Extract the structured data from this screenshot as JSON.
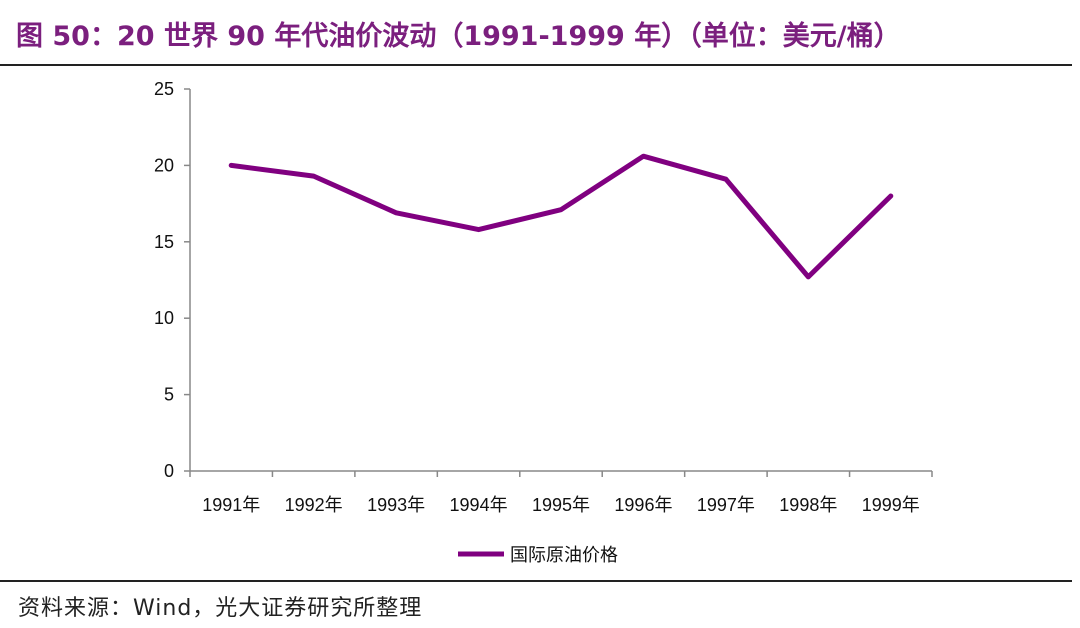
{
  "title": "图 50：20 世界 90 年代油价波动（1991-1999 年）（单位：美元/桶）",
  "source": "资料来源：Wind，光大证券研究所整理",
  "colors": {
    "line": "#800080",
    "title": "#7b1f7e",
    "axis": "#888888"
  },
  "chart_data": {
    "type": "line",
    "categories": [
      "1991年",
      "1992年",
      "1993年",
      "1994年",
      "1995年",
      "1996年",
      "1997年",
      "1998年",
      "1999年"
    ],
    "series": [
      {
        "name": "国际原油价格",
        "values": [
          20.0,
          19.3,
          16.9,
          15.8,
          17.1,
          20.6,
          19.1,
          12.7,
          18.0
        ]
      }
    ],
    "ylim": [
      0,
      25
    ],
    "yticks": [
      0,
      5,
      10,
      15,
      20,
      25
    ],
    "legend": "bottom",
    "grid": false
  }
}
